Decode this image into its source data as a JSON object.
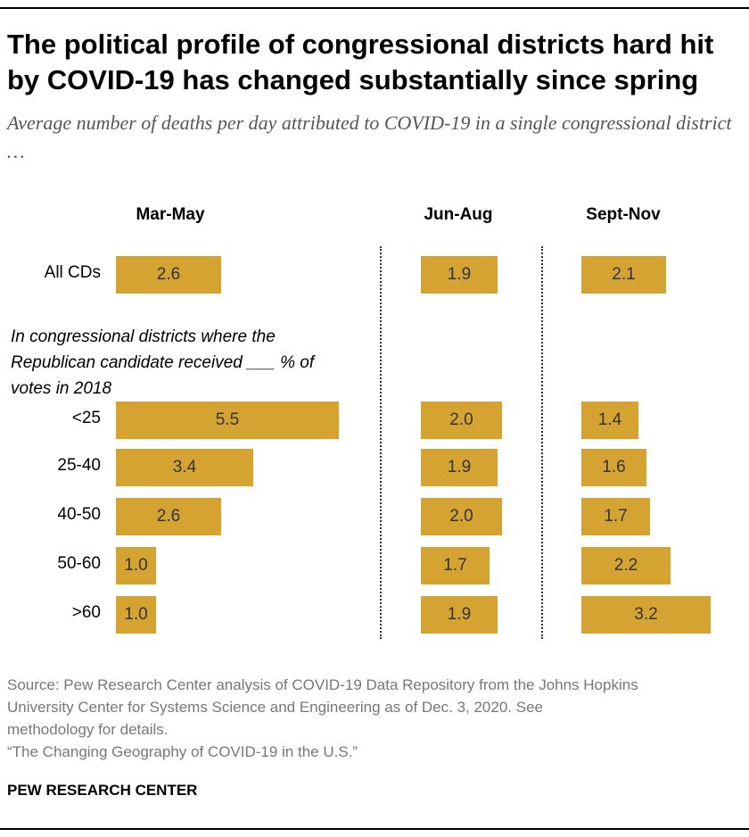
{
  "title": "The political profile of congressional districts hard hit by COVID-19 has changed substantially since spring",
  "subtitle": "Average number of deaths per day attributed to COVID-19 in a single congressional district …",
  "note": "In congressional districts where the Republican candidate received ___ % of votes in 2018",
  "source_lines": [
    "Source: Pew Research Center analysis of COVID-19 Data Repository from the Johns Hopkins",
    "University Center for Systems Science and Engineering as of Dec. 3, 2020. See",
    "methodology for details.",
    "“The Changing Geography of COVID-19 in the U.S.”"
  ],
  "brand": "PEW RESEARCH CENTER",
  "colors": {
    "bar": "#d5a332",
    "text": "#000000",
    "muted": "#777777"
  },
  "chart_data": {
    "type": "bar",
    "orientation": "horizontal",
    "panels": [
      "Mar-May",
      "Jun-Aug",
      "Sept-Nov"
    ],
    "categories": [
      "All CDs",
      "<25",
      "25-40",
      "40-50",
      "50-60",
      ">60"
    ],
    "series": [
      {
        "name": "Mar-May",
        "values": [
          2.6,
          5.5,
          3.4,
          2.6,
          1.0,
          1.0
        ]
      },
      {
        "name": "Jun-Aug",
        "values": [
          1.9,
          2.0,
          1.9,
          2.0,
          1.7,
          1.9
        ]
      },
      {
        "name": "Sept-Nov",
        "values": [
          2.1,
          1.4,
          1.6,
          1.7,
          2.2,
          3.2
        ]
      }
    ],
    "value_labels": [
      [
        "2.6",
        "5.5",
        "3.4",
        "2.6",
        "1.0",
        "1.0"
      ],
      [
        "1.9",
        "2.0",
        "1.9",
        "2.0",
        "1.7",
        "1.9"
      ],
      [
        "2.1",
        "1.4",
        "1.6",
        "1.7",
        "2.2",
        "3.2"
      ]
    ],
    "xlim": [
      0,
      5.5
    ],
    "grid": false,
    "legend": "none"
  }
}
